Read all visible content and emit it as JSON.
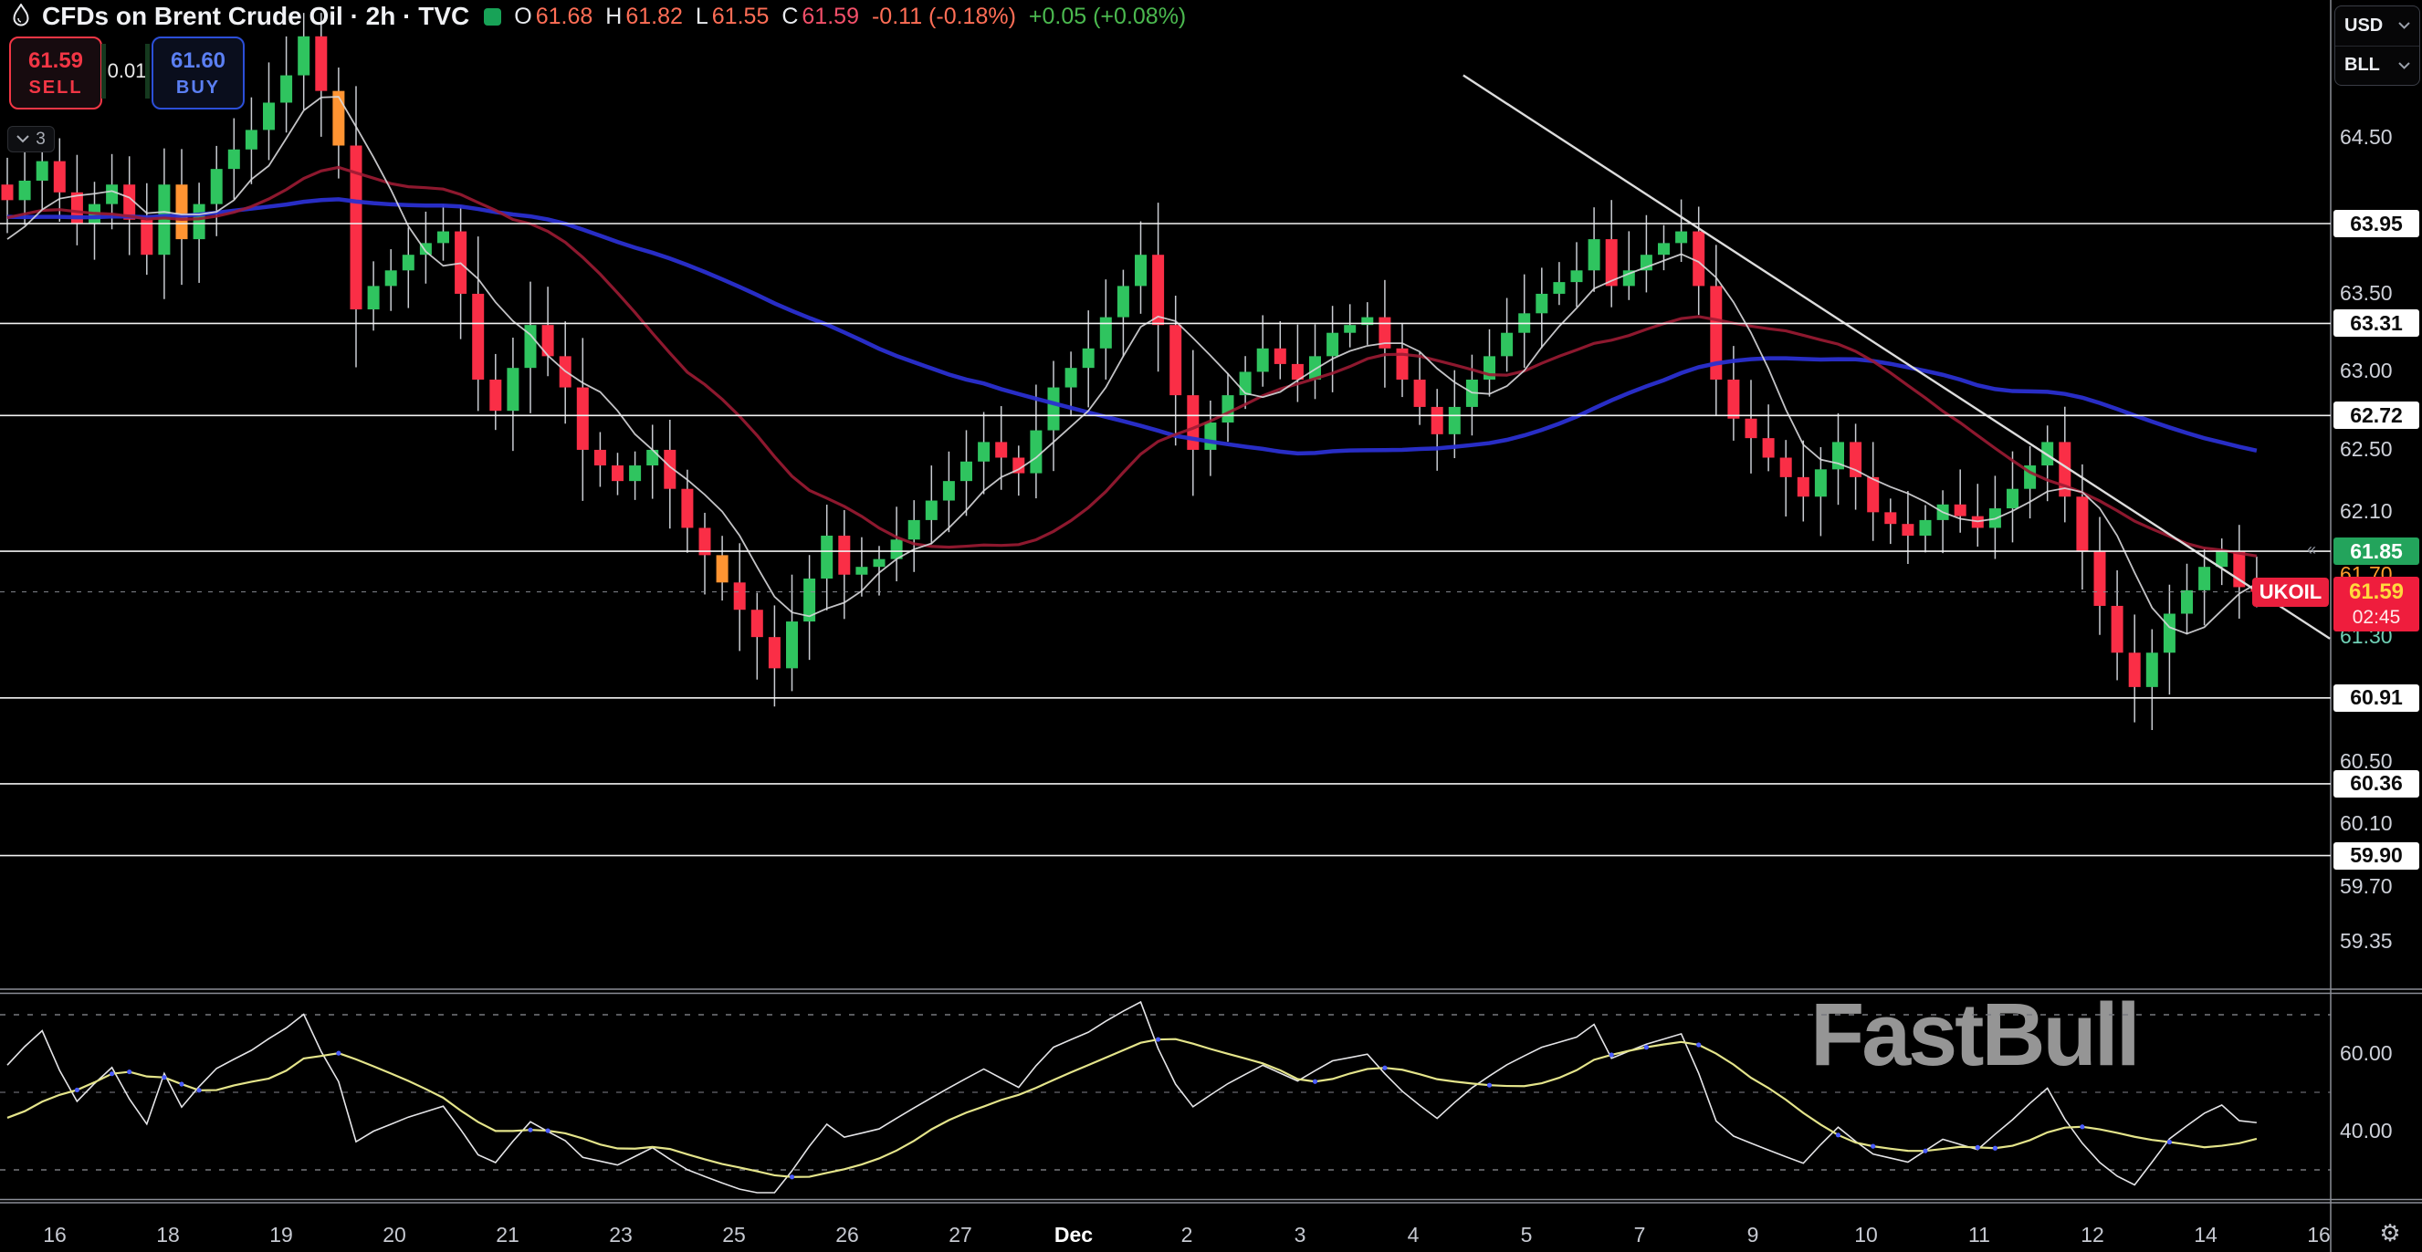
{
  "header": {
    "title": "CFDs on Brent Crude Oil · 2h · TVC",
    "ohlc": {
      "o_label": "O",
      "o_value": "61.68",
      "h_label": "H",
      "h_value": "61.82",
      "l_label": "L",
      "l_value": "61.55",
      "c_label": "C",
      "c_value": "61.59",
      "change": "-0.11 (-0.18%)",
      "after_hours_change": "+0.05 (+0.08%)"
    }
  },
  "trade_panel": {
    "sell_price": "61.59",
    "sell_label": "SELL",
    "spread": "0.01",
    "buy_price": "61.60",
    "buy_label": "BUY",
    "hidden_indicators_count": "3"
  },
  "currency_selector": {
    "currency": "USD",
    "unit": "BLL"
  },
  "symbol_badge": "UKOIL",
  "watermark": "FastBull",
  "price_axis": {
    "plain_labels": [
      {
        "text": "64.50",
        "price": 64.5
      },
      {
        "text": "63.50",
        "price": 63.5
      },
      {
        "text": "63.00",
        "price": 63.0
      },
      {
        "text": "62.50",
        "price": 62.5
      },
      {
        "text": "62.10",
        "price": 62.1
      },
      {
        "text": "61.70",
        "price": 61.7,
        "color": "#ff9d2e"
      },
      {
        "text": "61.30",
        "price": 61.3,
        "color": "#6fd0b5"
      },
      {
        "text": "60.50",
        "price": 60.5
      },
      {
        "text": "60.10",
        "price": 60.1
      },
      {
        "text": "59.70",
        "price": 59.7
      },
      {
        "text": "59.35",
        "price": 59.35
      }
    ],
    "line_labels": [
      {
        "text": "63.95",
        "price": 63.95,
        "style": "white"
      },
      {
        "text": "63.31",
        "price": 63.31,
        "style": "white"
      },
      {
        "text": "62.72",
        "price": 62.72,
        "style": "white"
      },
      {
        "text": "61.85",
        "price": 61.85,
        "style": "green"
      },
      {
        "text": "60.91",
        "price": 60.91,
        "style": "white"
      },
      {
        "text": "60.36",
        "price": 60.36,
        "style": "white"
      },
      {
        "text": "59.90",
        "price": 59.9,
        "style": "white"
      }
    ],
    "current": {
      "price_text": "61.59",
      "countdown": "02:45"
    }
  },
  "rsi_axis_labels": [
    {
      "text": "60.00",
      "value": 60
    },
    {
      "text": "40.00",
      "value": 40
    }
  ],
  "time_axis": {
    "labels": [
      "16",
      "18",
      "19",
      "20",
      "21",
      "23",
      "25",
      "26",
      "27",
      "Dec",
      "2",
      "3",
      "4",
      "5",
      "7",
      "9",
      "10",
      "11",
      "12",
      "14",
      "16"
    ],
    "bold_index": 9
  },
  "chart_data": {
    "type": "candlestick",
    "symbol": "UKOIL",
    "title": "CFDs on Brent Crude Oil",
    "timeframe": "2h",
    "exchange": "TVC",
    "last_bar": {
      "open": 61.68,
      "high": 61.82,
      "low": 61.55,
      "close": 61.59,
      "change": "-0.11",
      "change_pct": "-0.18%",
      "after_change": "+0.05",
      "after_change_pct": "+0.08%"
    },
    "visible_price_range": [
      59.0,
      65.38
    ],
    "horizontal_lines": [
      63.95,
      63.31,
      62.72,
      61.85,
      60.91,
      60.36,
      59.9
    ],
    "current_price": 61.59,
    "countdown": "02:45",
    "trendline": {
      "i1": 83.5,
      "p1": 64.9,
      "i2": 133.2,
      "p2": 61.29
    },
    "num_candles": 130,
    "close_anchors": [
      [
        0,
        64.1
      ],
      [
        2,
        64.35
      ],
      [
        4,
        63.95
      ],
      [
        6,
        64.2
      ],
      [
        8,
        63.75
      ],
      [
        9,
        64.2
      ],
      [
        10,
        63.85
      ],
      [
        12,
        64.3
      ],
      [
        14,
        64.55
      ],
      [
        16,
        64.9
      ],
      [
        17,
        65.15
      ],
      [
        18,
        64.8
      ],
      [
        19,
        64.45
      ],
      [
        20,
        63.4
      ],
      [
        21,
        63.55
      ],
      [
        23,
        63.75
      ],
      [
        25,
        63.9
      ],
      [
        26,
        63.5
      ],
      [
        27,
        62.95
      ],
      [
        28,
        62.75
      ],
      [
        30,
        63.3
      ],
      [
        32,
        62.9
      ],
      [
        33,
        62.5
      ],
      [
        35,
        62.3
      ],
      [
        37,
        62.5
      ],
      [
        39,
        62.0
      ],
      [
        41,
        61.65
      ],
      [
        43,
        61.3
      ],
      [
        44,
        61.1
      ],
      [
        45,
        61.4
      ],
      [
        47,
        61.95
      ],
      [
        48,
        61.7
      ],
      [
        50,
        61.8
      ],
      [
        52,
        62.05
      ],
      [
        54,
        62.3
      ],
      [
        56,
        62.55
      ],
      [
        58,
        62.35
      ],
      [
        60,
        62.9
      ],
      [
        62,
        63.15
      ],
      [
        64,
        63.55
      ],
      [
        65,
        63.75
      ],
      [
        66,
        63.3
      ],
      [
        67,
        62.85
      ],
      [
        68,
        62.5
      ],
      [
        70,
        62.85
      ],
      [
        72,
        63.15
      ],
      [
        74,
        62.95
      ],
      [
        76,
        63.25
      ],
      [
        78,
        63.35
      ],
      [
        80,
        62.95
      ],
      [
        82,
        62.6
      ],
      [
        84,
        62.95
      ],
      [
        86,
        63.25
      ],
      [
        88,
        63.5
      ],
      [
        90,
        63.65
      ],
      [
        91,
        63.85
      ],
      [
        92,
        63.55
      ],
      [
        94,
        63.75
      ],
      [
        96,
        63.9
      ],
      [
        97,
        63.55
      ],
      [
        98,
        62.95
      ],
      [
        99,
        62.7
      ],
      [
        101,
        62.45
      ],
      [
        103,
        62.2
      ],
      [
        105,
        62.55
      ],
      [
        107,
        62.1
      ],
      [
        109,
        61.95
      ],
      [
        111,
        62.15
      ],
      [
        113,
        62.0
      ],
      [
        115,
        62.25
      ],
      [
        117,
        62.55
      ],
      [
        118,
        62.2
      ],
      [
        119,
        61.85
      ],
      [
        120,
        61.5
      ],
      [
        121,
        61.2
      ],
      [
        122,
        60.98
      ],
      [
        123,
        61.2
      ],
      [
        124,
        61.45
      ],
      [
        125,
        61.6
      ],
      [
        126,
        61.75
      ],
      [
        127,
        61.85
      ],
      [
        128,
        61.62
      ],
      [
        129,
        61.59
      ]
    ],
    "orange_candle_indices": [
      10,
      19,
      41
    ],
    "ma_periods": [
      6,
      20,
      48
    ],
    "rsi": {
      "period": 14,
      "signal_period": 9,
      "levels": [
        70,
        50,
        30
      ]
    }
  },
  "colors": {
    "background": "#000000",
    "candle_up": "#2fc45f",
    "candle_down": "#fa2e46",
    "candle_orange": "#ff9432",
    "wick": "#c9ccd2",
    "ma_fast": "#d8d8dc",
    "ma_mid": "#9c1b33",
    "ma_slow": "#2a2fd0",
    "trendline": "#dcdcdc",
    "h_line": "#f2f2f2",
    "price_line": "#8b8e96",
    "badge_green_bg": "#23a45c",
    "badge_red_bg": "#ef1d3d",
    "badge_red_price": "#ffd93d",
    "sell": "#f23645",
    "buy": "#5b7ff2",
    "axis_text": "#ced1d9",
    "watermark": "#959595",
    "rsi_line": "#e5e5e8",
    "rsi_signal": "#e4e48a",
    "rsi_cross": "#4a5cff",
    "separator": "#9b9ea8",
    "rsi_grid": "#77787e"
  }
}
